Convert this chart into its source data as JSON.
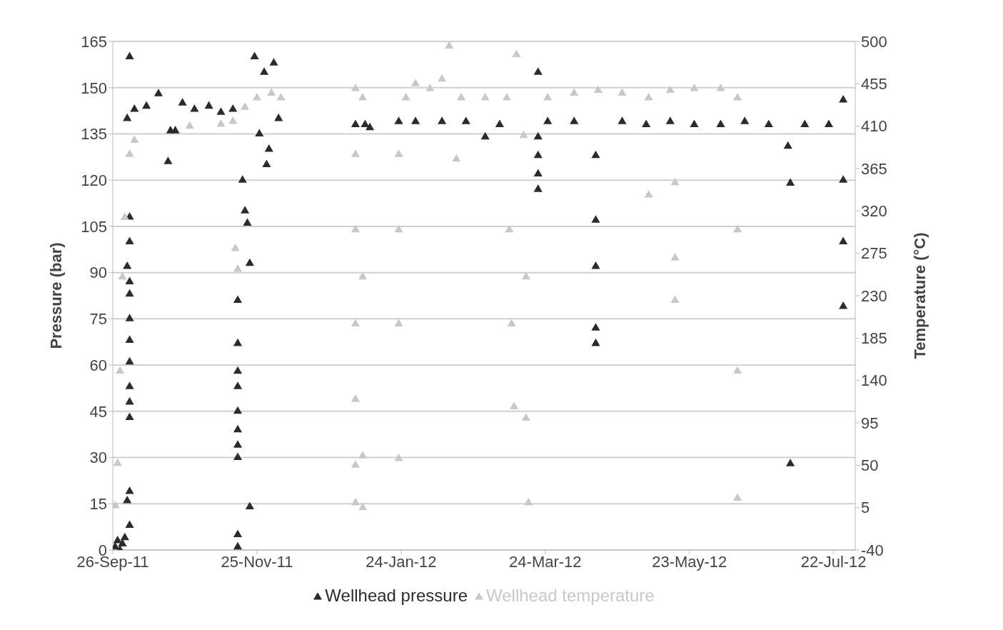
{
  "chart_data": {
    "type": "scatter",
    "ylabel": "Pressure (bar)",
    "y2label": "Temperature (°C)",
    "marker": "triangle",
    "grid": "y",
    "legend": "bottom",
    "xlim": [
      "2011-09-26",
      "2012-07-31"
    ],
    "xticks": [
      {
        "value": "2011-09-26",
        "label": "26-Sep-11"
      },
      {
        "value": "2011-11-25",
        "label": "25-Nov-11"
      },
      {
        "value": "2012-01-24",
        "label": "24-Jan-12"
      },
      {
        "value": "2012-03-24",
        "label": "24-Mar-12"
      },
      {
        "value": "2012-05-23",
        "label": "23-May-12"
      },
      {
        "value": "2012-07-22",
        "label": "22-Jul-12"
      }
    ],
    "ylim": [
      0,
      165
    ],
    "yticks": [
      0,
      15,
      30,
      45,
      60,
      75,
      90,
      105,
      120,
      135,
      150,
      165
    ],
    "y2lim": [
      -40,
      500
    ],
    "y2ticks": [
      -40,
      5,
      50,
      95,
      140,
      185,
      230,
      275,
      320,
      365,
      410,
      455,
      500
    ],
    "series": [
      {
        "name": "Wellhead pressure",
        "color": "#2b2b2b",
        "x": [
          "2011-09-27",
          "2011-09-28",
          "2011-09-29",
          "2011-09-30",
          "2011-10-01",
          "2011-10-02",
          "2011-10-03",
          "2011-10-03",
          "2011-10-03",
          "2011-10-02",
          "2011-10-03",
          "2011-10-03",
          "2011-10-03",
          "2011-10-03",
          "2011-10-03",
          "2011-10-03",
          "2011-10-03",
          "2011-10-03",
          "2011-10-03",
          "2011-10-02",
          "2011-10-03",
          "2011-10-05",
          "2011-10-10",
          "2011-10-15",
          "2011-10-19",
          "2011-10-20",
          "2011-10-22",
          "2011-10-25",
          "2011-10-30",
          "2011-11-05",
          "2011-11-10",
          "2011-11-15",
          "2011-11-17",
          "2011-11-17",
          "2011-11-17",
          "2011-11-17",
          "2011-11-17",
          "2011-11-17",
          "2011-11-17",
          "2011-11-17",
          "2011-11-17",
          "2011-11-17",
          "2011-11-19",
          "2011-11-20",
          "2011-11-21",
          "2011-11-22",
          "2011-11-22",
          "2011-11-24",
          "2011-11-26",
          "2011-11-28",
          "2011-11-29",
          "2011-11-30",
          "2011-12-02",
          "2011-12-04",
          "2012-01-05",
          "2012-01-09",
          "2012-01-11",
          "2012-01-23",
          "2012-01-30",
          "2012-02-10",
          "2012-02-20",
          "2012-02-28",
          "2012-03-05",
          "2012-03-21",
          "2012-03-21",
          "2012-03-21",
          "2012-03-21",
          "2012-03-21",
          "2012-03-25",
          "2012-04-05",
          "2012-04-14",
          "2012-04-14",
          "2012-04-14",
          "2012-04-14",
          "2012-04-14",
          "2012-04-25",
          "2012-05-05",
          "2012-05-15",
          "2012-05-25",
          "2012-06-05",
          "2012-06-15",
          "2012-06-25",
          "2012-07-03",
          "2012-07-04",
          "2012-07-04",
          "2012-07-10",
          "2012-07-20",
          "2012-07-26",
          "2012-07-26",
          "2012-07-26",
          "2012-07-26"
        ],
        "values": [
          1,
          3,
          0,
          2,
          4,
          140,
          160,
          108,
          100,
          92,
          87,
          83,
          75,
          68,
          61,
          53,
          48,
          43,
          19,
          16,
          8,
          143,
          144,
          148,
          126,
          136,
          136,
          145,
          143,
          144,
          142,
          143,
          81,
          67,
          58,
          53,
          45,
          39,
          34,
          30,
          5,
          1,
          120,
          110,
          106,
          93,
          14,
          160,
          135,
          155,
          125,
          130,
          158,
          140,
          138,
          138,
          137,
          139,
          139,
          139,
          139,
          134,
          138,
          155,
          134,
          128,
          122,
          117,
          139,
          139,
          128,
          107,
          92,
          72,
          67,
          139,
          138,
          139,
          138,
          138,
          139,
          138,
          131,
          119,
          28,
          138,
          138,
          146,
          120,
          100,
          79
        ]
      },
      {
        "name": "Wellhead temperature",
        "color": "#c8c8c8",
        "axis": "y2",
        "x": [
          "2011-09-27",
          "2011-09-28",
          "2011-09-29",
          "2011-09-30",
          "2011-10-01",
          "2011-10-03",
          "2011-10-05",
          "2011-10-28",
          "2011-11-10",
          "2011-11-15",
          "2011-11-16",
          "2011-11-17",
          "2011-11-20",
          "2011-11-25",
          "2011-12-01",
          "2011-12-05",
          "2012-01-05",
          "2012-01-05",
          "2012-01-05",
          "2012-01-05",
          "2012-01-05",
          "2012-01-05",
          "2012-01-05",
          "2012-01-08",
          "2012-01-08",
          "2012-01-08",
          "2012-01-08",
          "2012-01-23",
          "2012-01-23",
          "2012-01-23",
          "2012-01-23",
          "2012-01-26",
          "2012-01-30",
          "2012-02-05",
          "2012-02-10",
          "2012-02-13",
          "2012-02-16",
          "2012-02-18",
          "2012-02-28",
          "2012-03-08",
          "2012-03-09",
          "2012-03-10",
          "2012-03-11",
          "2012-03-12",
          "2012-03-15",
          "2012-03-16",
          "2012-03-16",
          "2012-03-17",
          "2012-03-25",
          "2012-04-05",
          "2012-04-15",
          "2012-04-25",
          "2012-05-06",
          "2012-05-06",
          "2012-05-15",
          "2012-05-17",
          "2012-05-17",
          "2012-05-17",
          "2012-05-25",
          "2012-06-05",
          "2012-06-12",
          "2012-06-12",
          "2012-06-12",
          "2012-06-12"
        ],
        "values": [
          7,
          52,
          150,
          250,
          313,
          380,
          395,
          410,
          412,
          415,
          280,
          258,
          430,
          440,
          445,
          440,
          450,
          380,
          300,
          200,
          120,
          50,
          10,
          440,
          250,
          60,
          5,
          380,
          300,
          200,
          57,
          440,
          455,
          450,
          460,
          495,
          375,
          440,
          440,
          440,
          300,
          200,
          112,
          486,
          400,
          250,
          100,
          10,
          440,
          445,
          448,
          445,
          440,
          337,
          448,
          350,
          270,
          225,
          450,
          450,
          440,
          300,
          150,
          15
        ]
      }
    ]
  }
}
